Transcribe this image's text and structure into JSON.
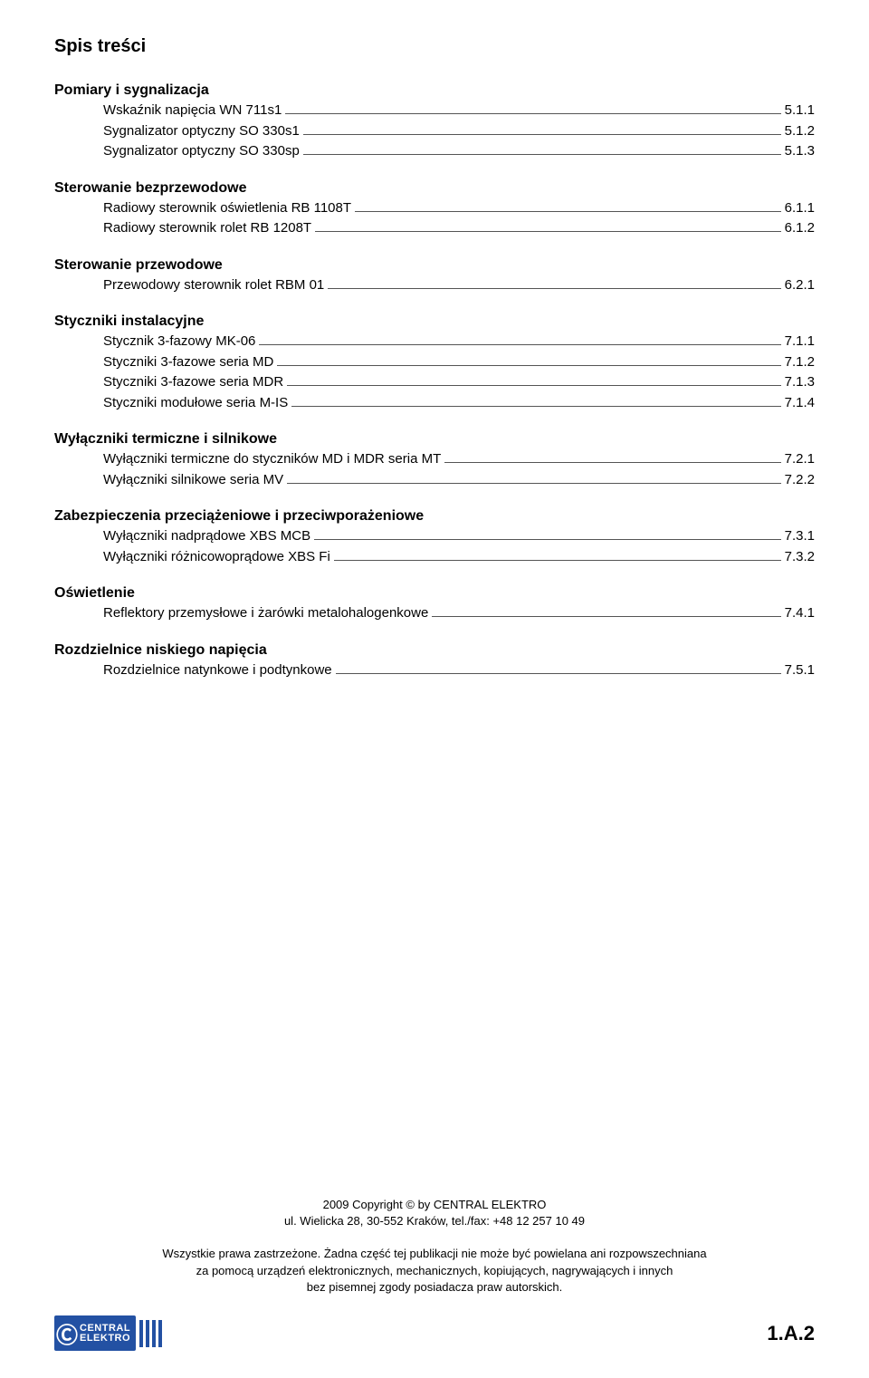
{
  "title": "Spis treści",
  "sections": [
    {
      "heading": "Pomiary i sygnalizacja",
      "entries": [
        {
          "label": "Wskaźnik napięcia WN 711s1",
          "page": "5.1.1"
        },
        {
          "label": "Sygnalizator optyczny SO 330s1",
          "page": "5.1.2"
        },
        {
          "label": "Sygnalizator optyczny SO 330sp",
          "page": "5.1.3"
        }
      ]
    },
    {
      "heading": "Sterowanie bezprzewodowe",
      "entries": [
        {
          "label": "Radiowy sterownik oświetlenia RB 1108T",
          "page": "6.1.1"
        },
        {
          "label": "Radiowy sterownik rolet RB 1208T",
          "page": "6.1.2"
        }
      ]
    },
    {
      "heading": "Sterowanie przewodowe",
      "entries": [
        {
          "label": "Przewodowy sterownik rolet RBM 01",
          "page": "6.2.1"
        }
      ]
    },
    {
      "heading": "Styczniki instalacyjne",
      "entries": [
        {
          "label": "Stycznik 3-fazowy MK-06",
          "page": "7.1.1"
        },
        {
          "label": "Styczniki 3-fazowe seria MD",
          "page": "7.1.2"
        },
        {
          "label": "Styczniki 3-fazowe seria MDR",
          "page": "7.1.3"
        },
        {
          "label": "Styczniki modułowe seria M-IS",
          "page": "7.1.4"
        }
      ]
    },
    {
      "heading": "Wyłączniki termiczne i silnikowe",
      "entries": [
        {
          "label": "Wyłączniki termiczne do styczników MD i MDR seria MT",
          "page": "7.2.1"
        },
        {
          "label": "Wyłączniki silnikowe seria MV",
          "page": "7.2.2"
        }
      ]
    },
    {
      "heading": "Zabezpieczenia przeciążeniowe i przeciwporażeniowe",
      "entries": [
        {
          "label": "Wyłączniki nadprądowe XBS MCB",
          "page": "7.3.1"
        },
        {
          "label": "Wyłączniki różnicowoprądowe XBS Fi",
          "page": "7.3.2"
        }
      ]
    },
    {
      "heading": "Oświetlenie",
      "entries": [
        {
          "label": "Reflektory przemysłowe i żarówki metalohalogenkowe",
          "page": "7.4.1"
        }
      ]
    },
    {
      "heading": "Rozdzielnice niskiego napięcia",
      "entries": [
        {
          "label": "Rozdzielnice natynkowe i podtynkowe",
          "page": "7.5.1"
        }
      ]
    }
  ],
  "copyright": {
    "line1": "2009 Copyright © by CENTRAL ELEKTRO",
    "line2": "ul. Wielicka 28, 30-552 Kraków, tel./fax: +48 12 257 10 49"
  },
  "rights": {
    "line1": "Wszystkie prawa zastrzeżone. Żadna część tej publikacji nie może być powielana ani rozpowszechniana",
    "line2": "za pomocą urządzeń elektronicznych, mechanicznych, kopiujących, nagrywających i innych",
    "line3": "bez pisemnej zgody posiadacza praw autorskich."
  },
  "brand": {
    "top": "CENTRAL",
    "bottom": "ELEKTRO"
  },
  "page_number": "1.A.2",
  "colors": {
    "text": "#000000",
    "leader": "#555555",
    "brand_bg": "#2351a3",
    "brand_fg": "#ffffff"
  },
  "typography": {
    "title_fontsize": 20,
    "heading_fontsize": 16,
    "entry_fontsize": 15,
    "footer_fontsize": 13,
    "page_num_fontsize": 22
  }
}
